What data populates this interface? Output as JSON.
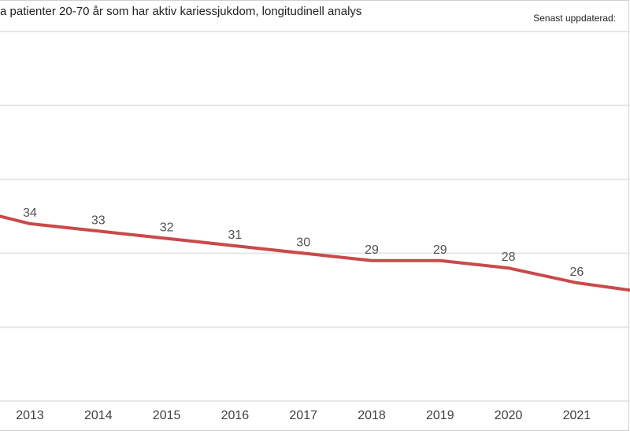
{
  "header": {
    "title": "a patienter 20-70 år som har aktiv kariessjukdom, longitudinell analys",
    "updated_label": "Senast uppdaterad:"
  },
  "chart_data": {
    "type": "line",
    "title": "a patienter 20-70 år som har aktiv kariessjukdom, longitudinell analys",
    "xlabel": "",
    "ylabel": "",
    "grid": true,
    "legend": "none",
    "x": [
      "2013",
      "2014",
      "2015",
      "2016",
      "2017",
      "2018",
      "2019",
      "2020",
      "2021"
    ],
    "series": [
      {
        "values": [
          34,
          33,
          32,
          31,
          30,
          29,
          29,
          28,
          26
        ],
        "labels": [
          "34",
          "33",
          "32",
          "31",
          "30",
          "29",
          "29",
          "28",
          "26"
        ],
        "color": "#c94a4a"
      }
    ],
    "ylim": [
      10,
      60
    ],
    "line_start_value": 35,
    "line_end_value": 25
  }
}
